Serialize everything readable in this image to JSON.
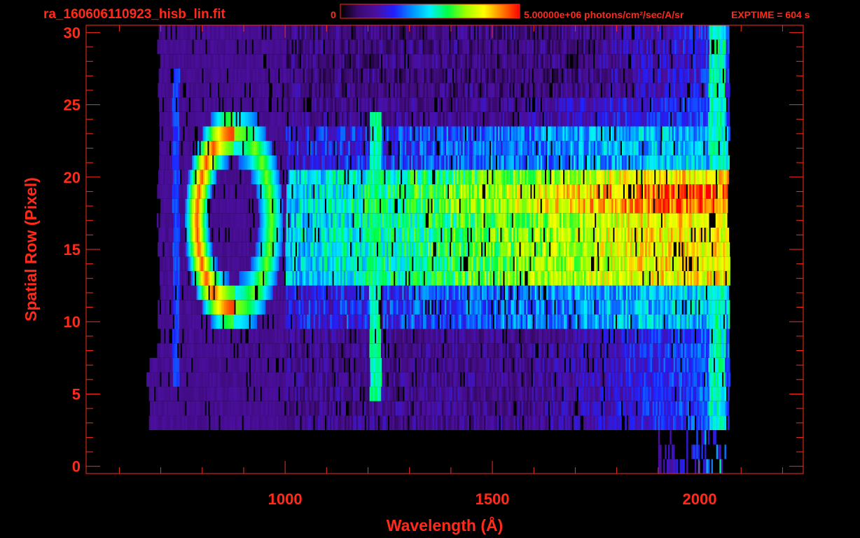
{
  "header": {
    "filename": "ra_160606110923_hisb_lin.fit",
    "colorbar_min_label": "0",
    "colorbar_max_label": "5.00000e+06 photons/cm²/sec/A/sr",
    "exptime_label": "EXPTIME = 604 s"
  },
  "colors": {
    "background": "#000000",
    "axis": "#ff2a1a",
    "colormap": [
      "#000000",
      "#3a0a6e",
      "#4b0fa0",
      "#2020ff",
      "#0090ff",
      "#00f0ff",
      "#00ff40",
      "#a0ff00",
      "#ffff00",
      "#ff8000",
      "#ff0000"
    ]
  },
  "chart_data": {
    "type": "heatmap",
    "xlabel": "Wavelength (Å)",
    "ylabel": "Spatial Row (Pixel)",
    "xlim": [
      520,
      2250
    ],
    "ylim": [
      -0.5,
      30.5
    ],
    "x_ticks": [
      1000,
      1500,
      2000
    ],
    "x_tick_labels": [
      "1000",
      "1500",
      "2000"
    ],
    "y_ticks": [
      0,
      5,
      10,
      15,
      20,
      25,
      30
    ],
    "y_tick_labels": [
      "0",
      "5",
      "10",
      "15",
      "20",
      "25",
      "30"
    ],
    "x_minor_step": 100,
    "y_minor_step": 1,
    "colorbar_range": [
      0,
      5000000
    ],
    "grid": false,
    "data_extent": {
      "x": [
        690,
        2070
      ],
      "rows": [
        3,
        30
      ]
    },
    "features": {
      "continuum_band_rows": [
        13,
        20
      ],
      "bright_continuum_rows": [
        10,
        23
      ],
      "emission_line_wavelength": 1216,
      "emission_line_rows": [
        5,
        24
      ],
      "ring_center": {
        "wavelength": 875,
        "row": 17
      },
      "ring_wavelength_halfwidth": 90,
      "ring_row_halfwidth": 6,
      "red_edge_wavelength": 2060
    }
  }
}
